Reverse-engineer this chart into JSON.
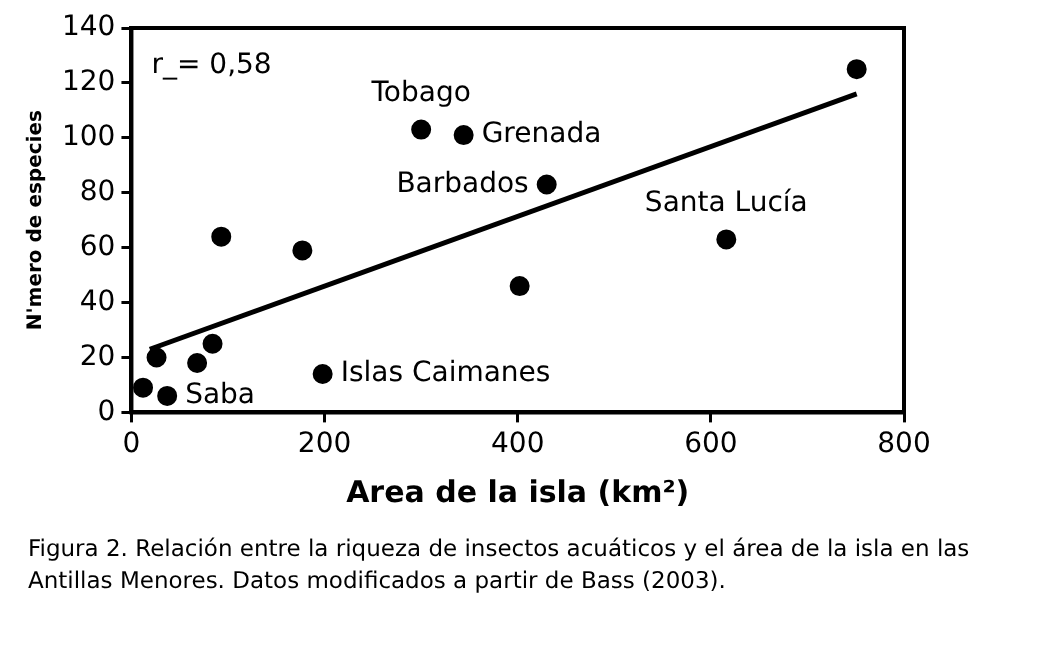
{
  "chart_data": {
    "type": "scatter",
    "xlabel": "Area de la isla (km²)",
    "ylabel": "N'mero de especies",
    "xlim": [
      0,
      800
    ],
    "xticks": [
      0,
      200,
      400,
      600,
      800
    ],
    "ylim": [
      0,
      140
    ],
    "yticks": [
      0,
      20,
      40,
      60,
      80,
      100,
      120,
      140
    ],
    "grid": false,
    "legend": false,
    "marker": "circle",
    "series": [
      {
        "color": "#000000",
        "x": [
          12,
          26,
          37,
          68,
          84,
          93,
          177,
          198,
          300,
          344,
          402,
          430,
          616,
          751
        ],
        "values": [
          9,
          20,
          6,
          18,
          25,
          64,
          59,
          14,
          103,
          101,
          46,
          83,
          63,
          125
        ]
      },
      {
        "type": "line",
        "color": "#000000",
        "marker": "none",
        "line_style": "solid",
        "x": [
          19,
          751
        ],
        "values": [
          23,
          116
        ]
      }
    ],
    "annotations": [
      "r_= 0,58",
      {
        "text": "Tobago",
        "x": 300,
        "y": 103
      },
      {
        "text": "Grenada",
        "x": 344,
        "y": 101
      },
      {
        "text": "Barbados",
        "x": 430,
        "y": 83
      },
      {
        "text": "Santa Lucía",
        "x": 616,
        "y": 63
      },
      {
        "text": "Islas Caimanes",
        "x": 198,
        "y": 14
      },
      {
        "text": "Saba",
        "x": 37,
        "y": 6
      },
      "Figura 2. Relación entre la riqueza de insectos acuáticos y el área de la isla en las Antillas Menores. Datos modificados a partir de Bass (2003)."
    ]
  }
}
